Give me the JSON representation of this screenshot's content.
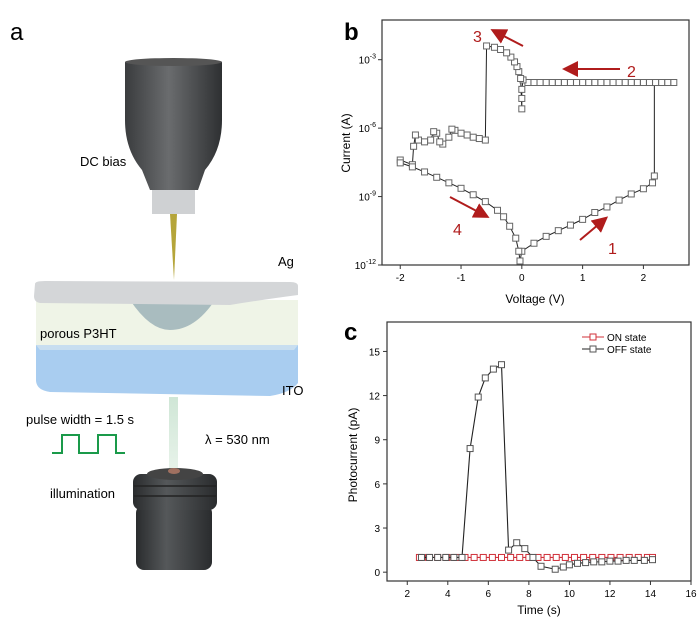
{
  "panel_a": {
    "letter": "a",
    "dc_bias": "DC bias",
    "ag": "Ag",
    "p3ht": "porous P3HT",
    "ito": "ITO",
    "pulse": "pulse width = 1.5 s",
    "wavelength": "λ = 530 nm",
    "illumination": "illumination",
    "colors": {
      "tip": "#b5a53a",
      "ag": "#d4d6d8",
      "p3ht": "#eef3e6",
      "ito": "#a9cdf0",
      "pulse": "#1a9a4a",
      "objective": "#3c3e40"
    }
  },
  "chart_data": [
    {
      "panel": "b",
      "type": "scatter",
      "xlabel": "Voltage (V)",
      "ylabel": "Current (A)",
      "yscale": "log",
      "xlim": [
        -2.3,
        2.75
      ],
      "ylim": [
        1e-12,
        0.055
      ],
      "xticks": [
        -2,
        -1,
        0,
        1,
        2
      ],
      "yticks": [
        {
          "v": 0.001,
          "base": "10",
          "exp": "-3"
        },
        {
          "v": 1e-06,
          "base": "10",
          "exp": "-6"
        },
        {
          "v": 1e-09,
          "base": "10",
          "exp": "-9"
        },
        {
          "v": 1e-12,
          "base": "10",
          "exp": "-12"
        }
      ],
      "annotations": [
        "1",
        "2",
        "3",
        "4"
      ],
      "annotation_color": "#b01c1c",
      "marker_color": "#666666",
      "points": [
        [
          -0.03,
          1.5e-12
        ],
        [
          0.0,
          4e-12
        ],
        [
          0.2,
          9e-12
        ],
        [
          0.4,
          1.8e-11
        ],
        [
          0.6,
          3.2e-11
        ],
        [
          0.8,
          5.6e-11
        ],
        [
          1.0,
          1e-10
        ],
        [
          1.2,
          2e-10
        ],
        [
          1.4,
          3.5e-10
        ],
        [
          1.6,
          7e-10
        ],
        [
          1.8,
          1.3e-09
        ],
        [
          2.0,
          2.2e-09
        ],
        [
          2.15,
          4e-09
        ],
        [
          2.18,
          8e-09
        ],
        [
          2.18,
          0.0001
        ],
        [
          2.5,
          0.0001
        ],
        [
          2.4,
          0.0001
        ],
        [
          2.3,
          0.0001
        ],
        [
          2.2,
          0.0001
        ],
        [
          2.1,
          0.0001
        ],
        [
          2.0,
          0.0001
        ],
        [
          1.9,
          0.0001
        ],
        [
          1.8,
          0.0001
        ],
        [
          1.7,
          0.0001
        ],
        [
          1.6,
          0.0001
        ],
        [
          1.5,
          0.0001
        ],
        [
          1.4,
          0.0001
        ],
        [
          1.3,
          0.0001
        ],
        [
          1.2,
          0.0001
        ],
        [
          1.1,
          0.0001
        ],
        [
          1.0,
          0.0001
        ],
        [
          0.9,
          0.0001
        ],
        [
          0.8,
          0.0001
        ],
        [
          0.7,
          0.0001
        ],
        [
          0.6,
          0.0001
        ],
        [
          0.5,
          0.0001
        ],
        [
          0.4,
          0.0001
        ],
        [
          0.3,
          0.0001
        ],
        [
          0.2,
          0.0001
        ],
        [
          0.1,
          0.0001
        ],
        [
          0.02,
          0.00013
        ],
        [
          0.0,
          5e-05
        ],
        [
          0.0,
          2e-05
        ],
        [
          0.0,
          7e-06
        ],
        [
          -0.02,
          0.00015
        ],
        [
          -0.05,
          0.0003
        ],
        [
          -0.08,
          0.0005
        ],
        [
          -0.12,
          0.0008
        ],
        [
          -0.18,
          0.0013
        ],
        [
          -0.25,
          0.002
        ],
        [
          -0.35,
          0.0028
        ],
        [
          -0.45,
          0.0035
        ],
        [
          -0.58,
          0.004
        ],
        [
          -0.6,
          3e-07
        ],
        [
          -0.7,
          3.5e-07
        ],
        [
          -0.8,
          4e-07
        ],
        [
          -0.9,
          5e-07
        ],
        [
          -1.0,
          6e-07
        ],
        [
          -1.1,
          8e-07
        ],
        [
          -1.15,
          9e-07
        ],
        [
          -1.2,
          4e-07
        ],
        [
          -1.3,
          2e-07
        ],
        [
          -1.35,
          2.5e-07
        ],
        [
          -1.4,
          6e-07
        ],
        [
          -1.45,
          7e-07
        ],
        [
          -1.5,
          3e-07
        ],
        [
          -1.6,
          2.5e-07
        ],
        [
          -1.7,
          3e-07
        ],
        [
          -1.75,
          5e-07
        ],
        [
          -1.78,
          1.6e-07
        ],
        [
          -1.8,
          2.5e-08
        ],
        [
          -2.0,
          4e-08
        ],
        [
          -2.0,
          3e-08
        ],
        [
          -1.8,
          2e-08
        ],
        [
          -1.6,
          1.2e-08
        ],
        [
          -1.4,
          7e-09
        ],
        [
          -1.2,
          4e-09
        ],
        [
          -1.0,
          2.3e-09
        ],
        [
          -0.8,
          1.2e-09
        ],
        [
          -0.6,
          6e-10
        ],
        [
          -0.4,
          2.5e-10
        ],
        [
          -0.3,
          1.3e-10
        ],
        [
          -0.2,
          5e-11
        ],
        [
          -0.1,
          1.5e-11
        ],
        [
          -0.05,
          4e-12
        ],
        [
          -0.03,
          1.5e-12
        ]
      ]
    },
    {
      "panel": "c",
      "type": "line",
      "xlabel": "Time (s)",
      "ylabel": "Photocurrent (pA)",
      "xlim": [
        1,
        16
      ],
      "ylim": [
        -0.6,
        17
      ],
      "xticks": [
        2,
        4,
        6,
        8,
        10,
        12,
        14,
        16
      ],
      "yticks": [
        0,
        3,
        6,
        9,
        12,
        15
      ],
      "legend_position": "top-right",
      "series": [
        {
          "name": "ON state",
          "color": "#d0303a",
          "x": [
            2.6,
            3.05,
            3.5,
            3.95,
            4.4,
            4.85,
            5.3,
            5.75,
            6.2,
            6.65,
            7.1,
            7.55,
            8.0,
            8.45,
            8.9,
            9.35,
            9.8,
            10.25,
            10.7,
            11.15,
            11.6,
            12.05,
            12.5,
            12.95,
            13.4,
            13.85,
            14.1
          ],
          "y": [
            1,
            1,
            1,
            1,
            1,
            1,
            1,
            1,
            1,
            1,
            1,
            1,
            1,
            1,
            1,
            1,
            1,
            1,
            1,
            1,
            1,
            1,
            1,
            1,
            1,
            1,
            1
          ]
        },
        {
          "name": "OFF state",
          "color": "#222222",
          "x": [
            2.7,
            3.1,
            3.5,
            3.9,
            4.3,
            4.7,
            5.1,
            5.5,
            5.85,
            6.25,
            6.65,
            7.0,
            7.4,
            7.8,
            8.2,
            8.6,
            9.3,
            9.7,
            10.0,
            10.4,
            10.8,
            11.2,
            11.6,
            12.0,
            12.4,
            12.8,
            13.2,
            13.7,
            14.1
          ],
          "y": [
            1,
            1,
            1,
            1,
            1,
            1,
            8.4,
            11.9,
            13.2,
            13.8,
            14.1,
            1.5,
            2.0,
            1.6,
            1.0,
            0.4,
            0.2,
            0.35,
            0.5,
            0.6,
            0.65,
            0.7,
            0.7,
            0.75,
            0.75,
            0.8,
            0.8,
            0.8,
            0.85
          ]
        }
      ]
    }
  ]
}
